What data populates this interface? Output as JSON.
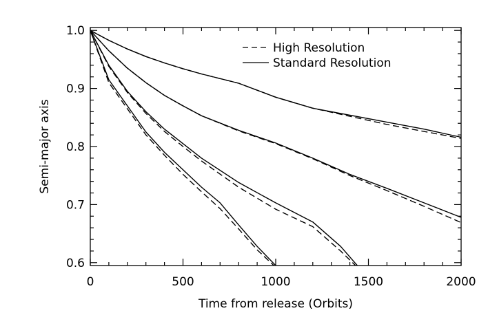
{
  "chart_data": {
    "type": "line",
    "xlabel": "Time from release (Orbits)",
    "ylabel": "Semi-major axis",
    "xlim": [
      0,
      2000
    ],
    "ylim": [
      0.595,
      1.005
    ],
    "xticks": [
      0,
      500,
      1000,
      1500,
      2000
    ],
    "xtick_labels": [
      "0",
      "500",
      "1000",
      "1500",
      "2000"
    ],
    "yticks": [
      0.6,
      0.7,
      0.8,
      0.9,
      1.0
    ],
    "ytick_labels": [
      "0.6",
      "0.7",
      "0.8",
      "0.9",
      "1.0"
    ],
    "grid": false,
    "legend": {
      "position": "top-right",
      "entries": [
        {
          "label": "High Resolution",
          "style": "dashed"
        },
        {
          "label": "Standard Resolution",
          "style": "solid"
        }
      ]
    },
    "series": [
      {
        "style": "solid",
        "x": [
          0,
          100,
          200,
          300,
          400,
          500,
          600,
          800,
          1000,
          1200,
          1400,
          1600,
          1800,
          2000
        ],
        "y": [
          1.0,
          0.983,
          0.968,
          0.955,
          0.944,
          0.934,
          0.925,
          0.909,
          0.885,
          0.866,
          0.854,
          0.842,
          0.83,
          0.816
        ]
      },
      {
        "style": "dashed",
        "x": [
          0,
          100,
          200,
          300,
          400,
          500,
          600,
          800,
          1000,
          1200,
          1400,
          1600,
          1800,
          2000
        ],
        "y": [
          1.0,
          0.983,
          0.968,
          0.955,
          0.944,
          0.934,
          0.925,
          0.909,
          0.885,
          0.866,
          0.852,
          0.838,
          0.826,
          0.814
        ]
      },
      {
        "style": "solid",
        "x": [
          0,
          100,
          200,
          300,
          400,
          500,
          600,
          800,
          1000,
          1200,
          1400,
          1600,
          1800,
          2000
        ],
        "y": [
          1.0,
          0.965,
          0.935,
          0.91,
          0.888,
          0.87,
          0.853,
          0.828,
          0.806,
          0.78,
          0.752,
          0.728,
          0.703,
          0.678
        ]
      },
      {
        "style": "dashed",
        "x": [
          0,
          100,
          200,
          300,
          400,
          500,
          600,
          800,
          1000,
          1200,
          1400,
          1600,
          1800,
          2000
        ],
        "y": [
          1.0,
          0.965,
          0.935,
          0.91,
          0.888,
          0.87,
          0.853,
          0.827,
          0.805,
          0.779,
          0.75,
          0.724,
          0.697,
          0.669
        ]
      },
      {
        "style": "solid",
        "x": [
          0,
          100,
          200,
          300,
          400,
          500,
          600,
          800,
          1000,
          1200,
          1350,
          1440
        ],
        "y": [
          1.0,
          0.94,
          0.895,
          0.86,
          0.83,
          0.805,
          0.78,
          0.738,
          0.703,
          0.67,
          0.628,
          0.595
        ]
      },
      {
        "style": "dashed",
        "x": [
          0,
          100,
          200,
          300,
          400,
          500,
          600,
          800,
          1000,
          1200,
          1350,
          1430
        ],
        "y": [
          1.0,
          0.938,
          0.893,
          0.857,
          0.826,
          0.8,
          0.775,
          0.73,
          0.692,
          0.662,
          0.62,
          0.595
        ]
      },
      {
        "style": "solid",
        "x": [
          0,
          100,
          200,
          300,
          400,
          500,
          600,
          700,
          800,
          900,
          1000
        ],
        "y": [
          1.0,
          0.915,
          0.87,
          0.825,
          0.79,
          0.76,
          0.73,
          0.703,
          0.665,
          0.628,
          0.595
        ]
      },
      {
        "style": "dashed",
        "x": [
          0,
          100,
          200,
          300,
          400,
          500,
          600,
          700,
          800,
          900,
          990
        ],
        "y": [
          1.0,
          0.91,
          0.865,
          0.82,
          0.785,
          0.752,
          0.722,
          0.693,
          0.658,
          0.622,
          0.595
        ]
      }
    ]
  }
}
